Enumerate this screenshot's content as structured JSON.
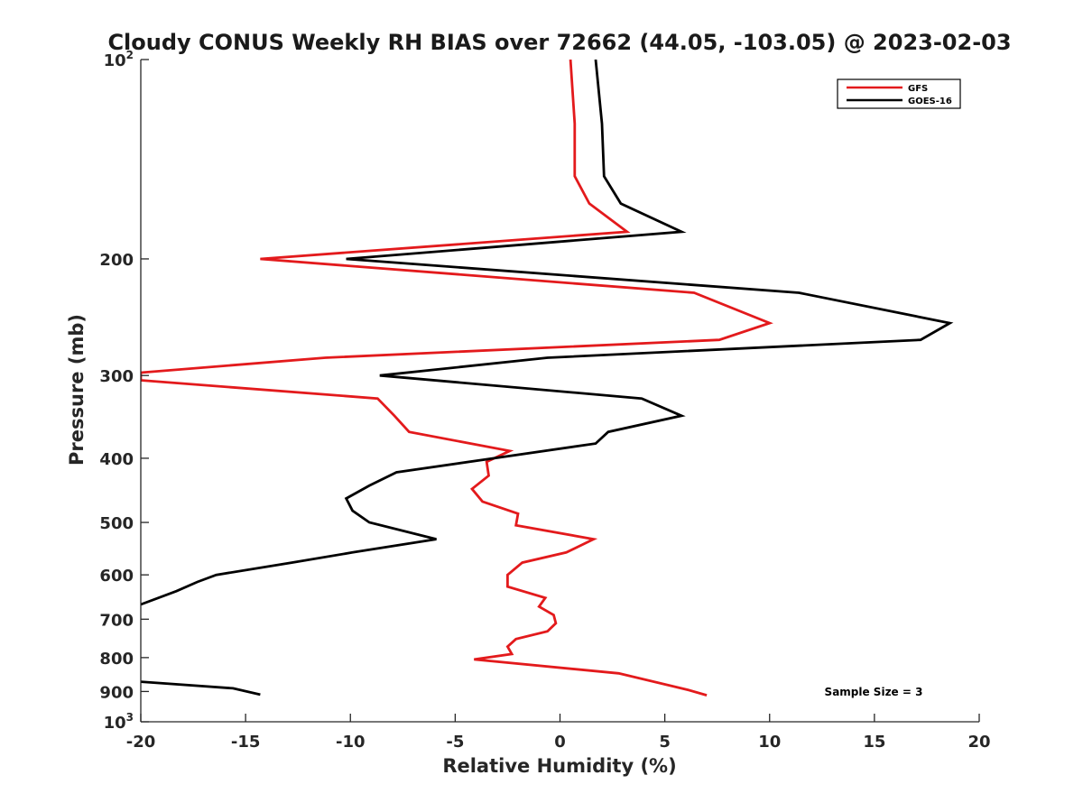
{
  "chart_data": {
    "type": "line",
    "title": "Cloudy CONUS Weekly RH BIAS over 72662 (44.05, -103.05) @ 2023-02-03",
    "xlabel": "Relative Humidity (%)",
    "ylabel": "Pressure (mb)",
    "xlim": [
      -20,
      20
    ],
    "ylim": [
      100,
      1000
    ],
    "y_scale": "log",
    "y_reversed": true,
    "xticks": [
      -20,
      -15,
      -10,
      -5,
      0,
      5,
      10,
      15,
      20
    ],
    "yticks": [
      {
        "value": 100,
        "label": "10",
        "sup": "2"
      },
      {
        "value": 200,
        "label": "200"
      },
      {
        "value": 300,
        "label": "300"
      },
      {
        "value": 400,
        "label": "400"
      },
      {
        "value": 500,
        "label": "500"
      },
      {
        "value": 600,
        "label": "600"
      },
      {
        "value": 700,
        "label": "700"
      },
      {
        "value": 800,
        "label": "800"
      },
      {
        "value": 900,
        "label": "900"
      },
      {
        "value": 1000,
        "label": "10",
        "sup": "3"
      }
    ],
    "grid": false,
    "legend_position": "top-right",
    "annotation": "Sample Size = 3",
    "series": [
      {
        "name": "GFS",
        "color": "#e31a1c",
        "points": [
          [
            0.5,
            100
          ],
          [
            0.7,
            125
          ],
          [
            0.7,
            150
          ],
          [
            1.4,
            165
          ],
          [
            3.2,
            182
          ],
          [
            -14.3,
            200
          ],
          [
            6.4,
            225
          ],
          [
            10.0,
            250
          ],
          [
            7.6,
            265
          ],
          [
            -11.2,
            282
          ],
          [
            -20.0,
            297
          ],
          [
            -20.0,
            305
          ],
          [
            -8.7,
            325
          ],
          [
            -7.9,
            345
          ],
          [
            -7.2,
            365
          ],
          [
            -2.4,
            390
          ],
          [
            -3.5,
            405
          ],
          [
            -3.4,
            425
          ],
          [
            -4.2,
            445
          ],
          [
            -3.7,
            465
          ],
          [
            -2.0,
            485
          ],
          [
            -2.1,
            505
          ],
          [
            1.6,
            530
          ],
          [
            0.3,
            555
          ],
          [
            -1.8,
            575
          ],
          [
            -2.5,
            600
          ],
          [
            -2.5,
            625
          ],
          [
            -0.7,
            650
          ],
          [
            -1.0,
            670
          ],
          [
            -0.3,
            690
          ],
          [
            -0.2,
            710
          ],
          [
            -0.6,
            730
          ],
          [
            -2.1,
            750
          ],
          [
            -2.5,
            770
          ],
          [
            -2.3,
            790
          ],
          [
            -4.1,
            805
          ],
          [
            2.8,
            845
          ],
          [
            6.1,
            895
          ],
          [
            7.0,
            912
          ]
        ]
      },
      {
        "name": "GOES-16",
        "color": "#000000",
        "points": [
          [
            1.7,
            100
          ],
          [
            2.0,
            125
          ],
          [
            2.1,
            150
          ],
          [
            2.9,
            165
          ],
          [
            5.8,
            182
          ],
          [
            -10.2,
            200
          ],
          [
            11.4,
            225
          ],
          [
            18.6,
            250
          ],
          [
            17.2,
            265
          ],
          [
            -0.6,
            282
          ],
          [
            -8.6,
            300
          ],
          [
            3.9,
            325
          ],
          [
            5.8,
            345
          ],
          [
            2.3,
            365
          ],
          [
            1.7,
            380
          ],
          [
            -7.8,
            420
          ],
          [
            -9.1,
            440
          ],
          [
            -10.2,
            460
          ],
          [
            -9.9,
            480
          ],
          [
            -9.1,
            500
          ],
          [
            -5.9,
            530
          ],
          [
            -9.9,
            555
          ],
          [
            -12.8,
            575
          ],
          [
            -16.4,
            600
          ],
          [
            -17.3,
            615
          ],
          [
            -18.3,
            635
          ],
          [
            -20.0,
            665
          ],
          [
            null,
            null
          ],
          [
            -20.0,
            870
          ],
          [
            -15.6,
            890
          ],
          [
            -14.3,
            910
          ]
        ]
      }
    ]
  }
}
